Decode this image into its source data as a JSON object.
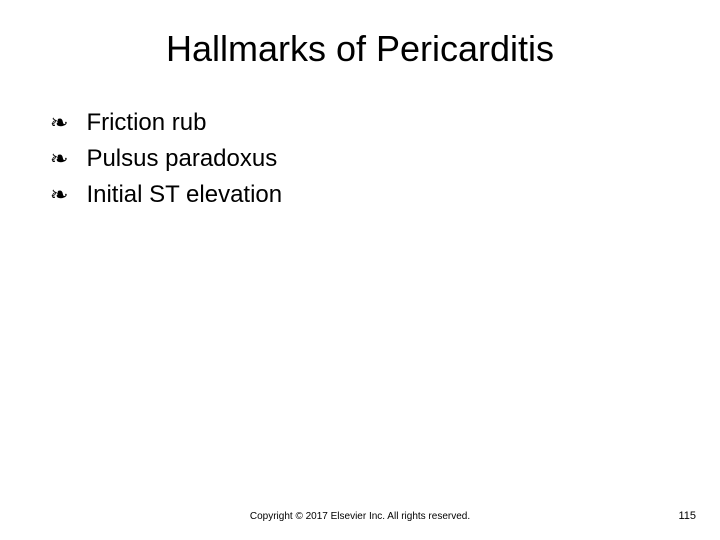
{
  "slide": {
    "title": "Hallmarks of Pericarditis",
    "bullets": [
      "Friction rub",
      "Pulsus paradoxus",
      "Initial ST elevation"
    ],
    "bullet_marker": "❧",
    "copyright": "Copyright © 2017 Elsevier Inc. All rights reserved.",
    "page_number": "115"
  },
  "style": {
    "background_color": "#ffffff",
    "title_fontsize": 36,
    "bullet_fontsize": 24,
    "footer_fontsize": 10,
    "text_color": "#000000"
  }
}
